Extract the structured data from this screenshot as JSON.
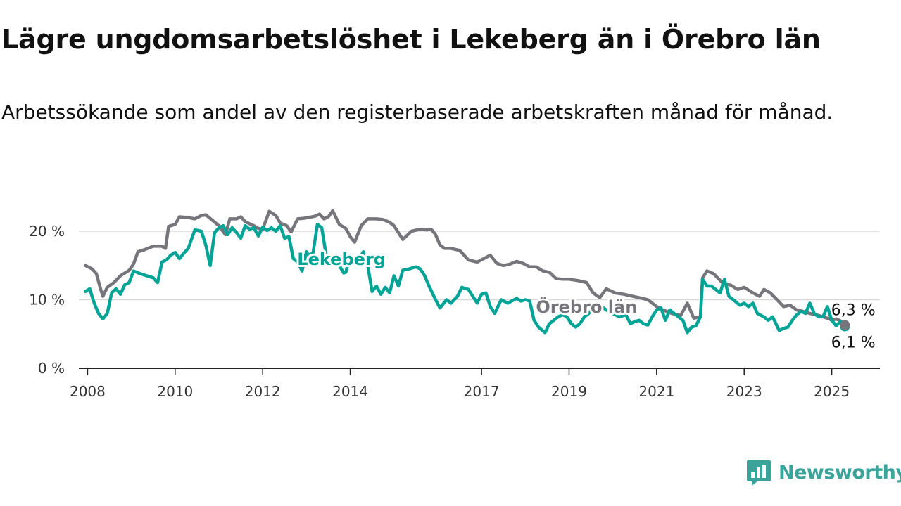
{
  "title": "Lägre ungdomsarbetslöshet i Lekeberg än i Örebro län",
  "subtitle": "Arbetssökande som andel av den registerbaserade arbetskraften månad för månad.",
  "brand": "Newsworthy",
  "colors": {
    "lekeberg": "#00a497",
    "orebro": "#76757b",
    "grid": "#d9d9d9",
    "axis": "#222222",
    "brand": "#3aa39a"
  },
  "chart_data": {
    "type": "line",
    "title": "Lägre ungdomsarbetslöshet i Lekeberg än i Örebro län",
    "subtitle": "Arbetssökande som andel av den registerbaserade arbetskraften månad för månad.",
    "xlabel": "",
    "ylabel": "",
    "xlim": [
      2007.8,
      2026.1
    ],
    "ylim": [
      0,
      24
    ],
    "x_ticks": [
      2008,
      2010,
      2012,
      2014,
      2017,
      2019,
      2021,
      2023,
      2025
    ],
    "x_tick_labels": [
      "2008",
      "2010",
      "2012",
      "2014",
      "2017",
      "2019",
      "2021",
      "2023",
      "2025"
    ],
    "y_ticks": [
      0,
      10,
      20
    ],
    "y_tick_labels": [
      "0 %",
      "10 %",
      "20 %"
    ],
    "grid": "horizontal",
    "legend": "direct labels",
    "series": [
      {
        "name": "Örebro län",
        "end_label": "6,3 %",
        "points": [
          [
            2007.95,
            15.0
          ],
          [
            2008.1,
            14.5
          ],
          [
            2008.2,
            13.8
          ],
          [
            2008.3,
            11.5
          ],
          [
            2008.35,
            10.5
          ],
          [
            2008.45,
            11.8
          ],
          [
            2008.6,
            12.5
          ],
          [
            2008.75,
            13.5
          ],
          [
            2008.95,
            14.3
          ],
          [
            2009.05,
            15.2
          ],
          [
            2009.15,
            17.0
          ],
          [
            2009.3,
            17.3
          ],
          [
            2009.5,
            17.8
          ],
          [
            2009.7,
            17.8
          ],
          [
            2009.78,
            17.5
          ],
          [
            2009.85,
            20.7
          ],
          [
            2010.0,
            21.0
          ],
          [
            2010.1,
            22.1
          ],
          [
            2010.3,
            22.0
          ],
          [
            2010.45,
            21.8
          ],
          [
            2010.6,
            22.3
          ],
          [
            2010.7,
            22.4
          ],
          [
            2010.85,
            21.6
          ],
          [
            2011.0,
            20.8
          ],
          [
            2011.15,
            19.5
          ],
          [
            2011.25,
            21.8
          ],
          [
            2011.4,
            21.8
          ],
          [
            2011.5,
            22.1
          ],
          [
            2011.6,
            21.4
          ],
          [
            2011.8,
            20.8
          ],
          [
            2011.9,
            20.4
          ],
          [
            2012.0,
            20.3
          ],
          [
            2012.15,
            22.9
          ],
          [
            2012.3,
            22.3
          ],
          [
            2012.4,
            21.2
          ],
          [
            2012.55,
            20.8
          ],
          [
            2012.65,
            19.9
          ],
          [
            2012.8,
            21.8
          ],
          [
            2012.95,
            21.9
          ],
          [
            2013.05,
            22.0
          ],
          [
            2013.2,
            22.2
          ],
          [
            2013.3,
            22.5
          ],
          [
            2013.4,
            21.8
          ],
          [
            2013.5,
            22.1
          ],
          [
            2013.6,
            23.0
          ],
          [
            2013.75,
            21.0
          ],
          [
            2013.9,
            20.4
          ],
          [
            2014.0,
            19.2
          ],
          [
            2014.1,
            18.4
          ],
          [
            2014.25,
            20.8
          ],
          [
            2014.4,
            21.8
          ],
          [
            2014.6,
            21.8
          ],
          [
            2014.75,
            21.7
          ],
          [
            2014.9,
            21.3
          ],
          [
            2015.0,
            20.8
          ],
          [
            2015.2,
            18.8
          ],
          [
            2015.4,
            20.0
          ],
          [
            2015.6,
            20.3
          ],
          [
            2015.75,
            20.2
          ],
          [
            2015.85,
            20.3
          ],
          [
            2015.95,
            19.5
          ],
          [
            2016.05,
            18.0
          ],
          [
            2016.15,
            17.5
          ],
          [
            2016.3,
            17.5
          ],
          [
            2016.5,
            17.2
          ],
          [
            2016.7,
            15.8
          ],
          [
            2016.9,
            15.5
          ],
          [
            2017.05,
            16.0
          ],
          [
            2017.2,
            16.5
          ],
          [
            2017.35,
            15.3
          ],
          [
            2017.5,
            15.0
          ],
          [
            2017.65,
            15.2
          ],
          [
            2017.8,
            15.6
          ],
          [
            2017.95,
            15.3
          ],
          [
            2018.1,
            14.8
          ],
          [
            2018.25,
            14.8
          ],
          [
            2018.4,
            14.2
          ],
          [
            2018.55,
            14.0
          ],
          [
            2018.7,
            13.1
          ],
          [
            2018.85,
            13.0
          ],
          [
            2019.0,
            13.0
          ],
          [
            2019.2,
            12.8
          ],
          [
            2019.4,
            12.5
          ],
          [
            2019.55,
            11.0
          ],
          [
            2019.7,
            10.3
          ],
          [
            2019.85,
            11.6
          ],
          [
            2020.05,
            11.0
          ],
          [
            2020.25,
            10.8
          ],
          [
            2020.45,
            10.5
          ],
          [
            2020.6,
            10.3
          ],
          [
            2020.8,
            10.0
          ],
          [
            2021.0,
            9.0
          ],
          [
            2021.15,
            8.5
          ],
          [
            2021.35,
            8.0
          ],
          [
            2021.55,
            7.7
          ],
          [
            2021.7,
            9.5
          ],
          [
            2021.85,
            7.3
          ],
          [
            2022.0,
            7.5
          ],
          [
            2022.05,
            13.2
          ],
          [
            2022.15,
            14.2
          ],
          [
            2022.3,
            13.8
          ],
          [
            2022.5,
            12.5
          ],
          [
            2022.7,
            12.1
          ],
          [
            2022.85,
            11.5
          ],
          [
            2023.0,
            11.8
          ],
          [
            2023.2,
            11.0
          ],
          [
            2023.35,
            10.5
          ],
          [
            2023.45,
            11.5
          ],
          [
            2023.6,
            11.0
          ],
          [
            2023.75,
            10.0
          ],
          [
            2023.9,
            9.0
          ],
          [
            2024.05,
            9.2
          ],
          [
            2024.2,
            8.5
          ],
          [
            2024.35,
            8.3
          ],
          [
            2024.5,
            8.0
          ],
          [
            2024.65,
            7.8
          ],
          [
            2024.8,
            7.5
          ],
          [
            2024.95,
            7.2
          ],
          [
            2025.0,
            7.0
          ],
          [
            2025.1,
            7.2
          ],
          [
            2025.2,
            6.9
          ],
          [
            2025.3,
            6.3
          ]
        ]
      },
      {
        "name": "Lekeberg",
        "end_label": "6,1 %",
        "points": [
          [
            2007.95,
            11.2
          ],
          [
            2008.05,
            11.6
          ],
          [
            2008.15,
            9.5
          ],
          [
            2008.25,
            8.0
          ],
          [
            2008.35,
            7.2
          ],
          [
            2008.45,
            8.0
          ],
          [
            2008.55,
            11.0
          ],
          [
            2008.65,
            11.6
          ],
          [
            2008.75,
            10.8
          ],
          [
            2008.85,
            12.2
          ],
          [
            2008.95,
            12.5
          ],
          [
            2009.05,
            14.2
          ],
          [
            2009.2,
            13.8
          ],
          [
            2009.35,
            13.5
          ],
          [
            2009.5,
            13.2
          ],
          [
            2009.6,
            12.5
          ],
          [
            2009.7,
            15.5
          ],
          [
            2009.8,
            15.8
          ],
          [
            2009.9,
            16.5
          ],
          [
            2010.0,
            16.9
          ],
          [
            2010.1,
            16.0
          ],
          [
            2010.2,
            16.8
          ],
          [
            2010.3,
            17.5
          ],
          [
            2010.45,
            20.2
          ],
          [
            2010.6,
            20.0
          ],
          [
            2010.7,
            18.0
          ],
          [
            2010.8,
            15.0
          ],
          [
            2010.9,
            19.8
          ],
          [
            2011.0,
            20.5
          ],
          [
            2011.1,
            20.8
          ],
          [
            2011.2,
            19.5
          ],
          [
            2011.3,
            20.5
          ],
          [
            2011.4,
            19.8
          ],
          [
            2011.5,
            19.0
          ],
          [
            2011.6,
            20.8
          ],
          [
            2011.7,
            20.3
          ],
          [
            2011.8,
            20.5
          ],
          [
            2011.9,
            19.3
          ],
          [
            2012.0,
            20.6
          ],
          [
            2012.1,
            20.1
          ],
          [
            2012.2,
            20.5
          ],
          [
            2012.3,
            20.0
          ],
          [
            2012.4,
            20.8
          ],
          [
            2012.5,
            19.0
          ],
          [
            2012.6,
            19.2
          ],
          [
            2012.7,
            16.0
          ],
          [
            2012.8,
            15.5
          ],
          [
            2012.9,
            14.2
          ],
          [
            2013.0,
            17.0
          ],
          [
            2013.05,
            16.5
          ],
          [
            2013.15,
            16.8
          ],
          [
            2013.25,
            21.0
          ],
          [
            2013.35,
            20.5
          ],
          [
            2013.45,
            16.5
          ],
          [
            2013.6,
            15.5
          ],
          [
            2013.75,
            15.0
          ],
          [
            2013.85,
            13.9
          ],
          [
            2013.9,
            14.0
          ],
          [
            2014.0,
            16.5
          ],
          [
            2014.1,
            16.0
          ],
          [
            2014.2,
            16.0
          ],
          [
            2014.3,
            17.0
          ],
          [
            2014.4,
            15.0
          ],
          [
            2014.5,
            11.2
          ],
          [
            2014.6,
            12.0
          ],
          [
            2014.7,
            10.8
          ],
          [
            2014.8,
            11.8
          ],
          [
            2014.9,
            11.0
          ],
          [
            2015.0,
            13.5
          ],
          [
            2015.1,
            12.0
          ],
          [
            2015.2,
            14.3
          ],
          [
            2015.35,
            14.5
          ],
          [
            2015.5,
            14.8
          ],
          [
            2015.6,
            14.5
          ],
          [
            2015.7,
            13.5
          ],
          [
            2015.8,
            12.0
          ],
          [
            2015.95,
            10.0
          ],
          [
            2016.05,
            8.8
          ],
          [
            2016.2,
            10.0
          ],
          [
            2016.3,
            9.5
          ],
          [
            2016.45,
            10.5
          ],
          [
            2016.55,
            11.8
          ],
          [
            2016.7,
            11.5
          ],
          [
            2016.8,
            10.5
          ],
          [
            2016.9,
            9.5
          ],
          [
            2017.0,
            10.8
          ],
          [
            2017.1,
            11.0
          ],
          [
            2017.2,
            9.0
          ],
          [
            2017.3,
            8.0
          ],
          [
            2017.45,
            10.0
          ],
          [
            2017.6,
            9.5
          ],
          [
            2017.8,
            10.2
          ],
          [
            2017.9,
            9.8
          ],
          [
            2018.0,
            10.0
          ],
          [
            2018.1,
            9.8
          ],
          [
            2018.2,
            7.0
          ],
          [
            2018.3,
            6.0
          ],
          [
            2018.45,
            5.2
          ],
          [
            2018.55,
            6.5
          ],
          [
            2018.65,
            7.0
          ],
          [
            2018.75,
            7.5
          ],
          [
            2018.85,
            7.8
          ],
          [
            2018.95,
            7.5
          ],
          [
            2019.05,
            6.5
          ],
          [
            2019.15,
            6.0
          ],
          [
            2019.25,
            6.5
          ],
          [
            2019.35,
            7.5
          ],
          [
            2019.45,
            8.0
          ],
          [
            2019.55,
            8.8
          ],
          [
            2019.65,
            9.5
          ],
          [
            2019.75,
            9.0
          ],
          [
            2019.85,
            8.5
          ],
          [
            2019.95,
            8.2
          ],
          [
            2020.05,
            7.8
          ],
          [
            2020.15,
            7.5
          ],
          [
            2020.3,
            7.8
          ],
          [
            2020.4,
            6.5
          ],
          [
            2020.5,
            6.8
          ],
          [
            2020.6,
            7.0
          ],
          [
            2020.7,
            6.5
          ],
          [
            2020.8,
            6.3
          ],
          [
            2020.9,
            7.5
          ],
          [
            2021.0,
            8.5
          ],
          [
            2021.1,
            8.8
          ],
          [
            2021.2,
            7.0
          ],
          [
            2021.3,
            8.5
          ],
          [
            2021.4,
            8.0
          ],
          [
            2021.5,
            7.5
          ],
          [
            2021.6,
            7.0
          ],
          [
            2021.7,
            5.2
          ],
          [
            2021.8,
            6.0
          ],
          [
            2021.9,
            6.2
          ],
          [
            2022.0,
            7.5
          ],
          [
            2022.05,
            13.0
          ],
          [
            2022.15,
            12.0
          ],
          [
            2022.25,
            12.0
          ],
          [
            2022.35,
            11.5
          ],
          [
            2022.45,
            11.0
          ],
          [
            2022.55,
            13.0
          ],
          [
            2022.65,
            10.5
          ],
          [
            2022.75,
            10.0
          ],
          [
            2022.9,
            9.2
          ],
          [
            2023.0,
            9.5
          ],
          [
            2023.1,
            9.0
          ],
          [
            2023.2,
            9.5
          ],
          [
            2023.3,
            8.0
          ],
          [
            2023.45,
            7.5
          ],
          [
            2023.55,
            7.0
          ],
          [
            2023.65,
            7.5
          ],
          [
            2023.8,
            5.5
          ],
          [
            2023.9,
            5.8
          ],
          [
            2024.0,
            6.0
          ],
          [
            2024.1,
            7.0
          ],
          [
            2024.2,
            7.8
          ],
          [
            2024.3,
            8.3
          ],
          [
            2024.4,
            8.0
          ],
          [
            2024.5,
            9.5
          ],
          [
            2024.6,
            8.0
          ],
          [
            2024.7,
            7.5
          ],
          [
            2024.8,
            7.5
          ],
          [
            2024.9,
            9.0
          ],
          [
            2025.0,
            7.0
          ],
          [
            2025.1,
            6.2
          ],
          [
            2025.2,
            6.8
          ],
          [
            2025.3,
            6.1
          ]
        ]
      }
    ],
    "annotations": [
      {
        "text": "Lekeberg",
        "series": "Lekeberg",
        "x": 2013.8,
        "y": 15.9
      },
      {
        "text": "Örebro län",
        "series": "Örebro län",
        "x": 2019.4,
        "y": 8.9
      }
    ]
  }
}
